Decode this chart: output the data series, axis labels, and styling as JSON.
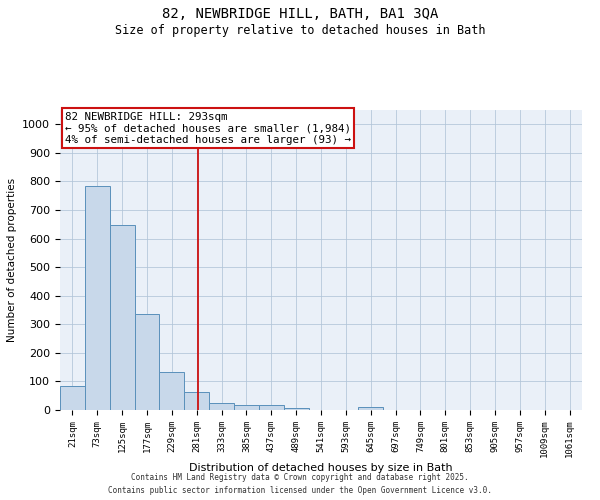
{
  "title_line1": "82, NEWBRIDGE HILL, BATH, BA1 3QA",
  "title_line2": "Size of property relative to detached houses in Bath",
  "xlabel": "Distribution of detached houses by size in Bath",
  "ylabel": "Number of detached properties",
  "bin_labels": [
    "21sqm",
    "73sqm",
    "125sqm",
    "177sqm",
    "229sqm",
    "281sqm",
    "333sqm",
    "385sqm",
    "437sqm",
    "489sqm",
    "541sqm",
    "593sqm",
    "645sqm",
    "697sqm",
    "749sqm",
    "801sqm",
    "853sqm",
    "905sqm",
    "957sqm",
    "1009sqm",
    "1061sqm"
  ],
  "bar_heights": [
    84,
    784,
    648,
    336,
    132,
    62,
    25,
    18,
    16,
    8,
    0,
    0,
    10,
    0,
    0,
    0,
    0,
    0,
    0,
    0,
    0
  ],
  "bar_color": "#c8d8ea",
  "bar_edge_color": "#5a90bb",
  "bar_edge_width": 0.7,
  "red_line_x": 5.54,
  "red_line_color": "#cc1111",
  "annotation_text": "82 NEWBRIDGE HILL: 293sqm\n← 95% of detached houses are smaller (1,984)\n4% of semi-detached houses are larger (93) →",
  "annotation_box_edgecolor": "#cc1111",
  "ylim": [
    0,
    1050
  ],
  "yticks": [
    0,
    100,
    200,
    300,
    400,
    500,
    600,
    700,
    800,
    900,
    1000
  ],
  "grid_color": "#b0c4d8",
  "background_color": "#eaf0f8",
  "footer_line1": "Contains HM Land Registry data © Crown copyright and database right 2025.",
  "footer_line2": "Contains public sector information licensed under the Open Government Licence v3.0."
}
